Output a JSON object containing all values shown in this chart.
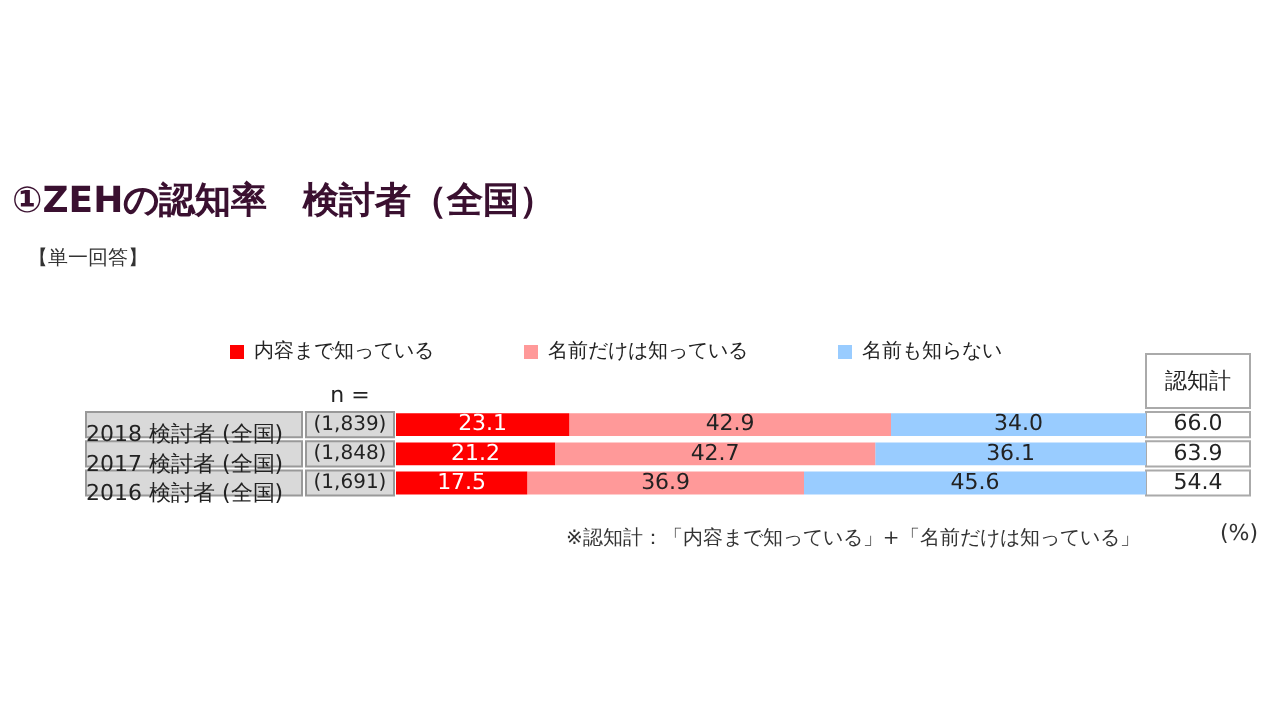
{
  "chart_data": {
    "type": "bar",
    "orientation": "horizontal",
    "stacked": true,
    "title": "①ZEHの認知率　検討者（全国）",
    "categories": [
      "2018 検討者 (全国)",
      "2017 検討者 (全国)",
      "2016 検討者 (全国)"
    ],
    "series": [
      {
        "name": "内容まで知っている",
        "color": "#ff0000",
        "values": [
          23.1,
          21.2,
          17.5
        ],
        "value_labels": [
          "23.1",
          "21.2",
          "17.5"
        ]
      },
      {
        "name": "名前だけは知っている",
        "color": "#ff9999",
        "values": [
          42.9,
          42.7,
          36.9
        ],
        "value_labels": [
          "42.9",
          "42.7",
          "36.9"
        ]
      },
      {
        "name": "名前も知らない",
        "color": "#99ccff",
        "values": [
          34.0,
          36.1,
          45.6
        ],
        "value_labels": [
          "34.0",
          "36.1",
          "45.6"
        ]
      }
    ],
    "xlim": [
      0,
      100
    ],
    "tick_labels": "y",
    "grid": false,
    "legend": "top",
    "annotations": [
      "【単一回答】",
      "n =",
      "(1,839)",
      "(1,848)",
      "(1,691)",
      "認知計",
      "66.0",
      "63.9",
      "54.4",
      "※認知計：「内容まで知っている」+「名前だけは知っている」",
      "(%)"
    ]
  }
}
